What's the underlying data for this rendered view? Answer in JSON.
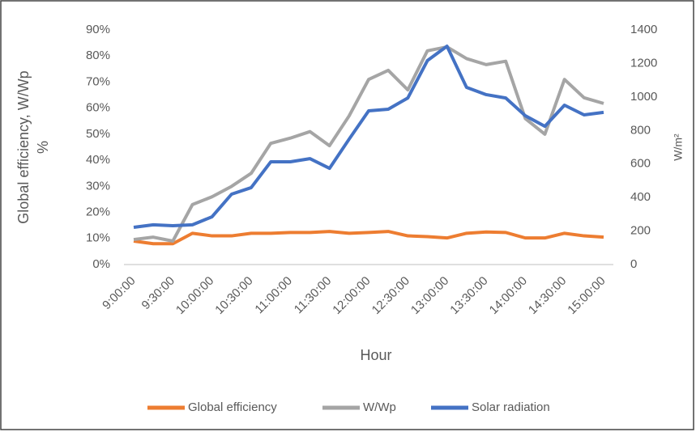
{
  "chart_data": {
    "type": "line",
    "y_label": "Global efficiency, W/Wp %",
    "y2_label": "W/m²",
    "x_label": "Hour",
    "categories": [
      "9:00:00",
      null,
      "9:30:00",
      null,
      "10:00:00",
      null,
      "10:30:00",
      null,
      "11:00:00",
      null,
      "11:30:00",
      null,
      "12:00:00",
      null,
      "12:30:00",
      null,
      "13:00:00",
      null,
      "13:30:00",
      null,
      "14:00:00",
      null,
      "14:30:00",
      null,
      "15:00:00"
    ],
    "series": [
      {
        "name": "Global efficiency",
        "color": "#ed7d31",
        "values": [
          9,
          8,
          8,
          12,
          11,
          11,
          12,
          12,
          12.3,
          12.3,
          12.7,
          12,
          12.3,
          12.7,
          11,
          10.7,
          10.2,
          12,
          12.5,
          12.3,
          10.2,
          10.2,
          12,
          11,
          10.5
        ]
      },
      {
        "name": "W/Wp",
        "color": "#a5a5a5",
        "values": [
          9.6,
          10.5,
          9,
          23,
          26,
          30,
          35,
          46.5,
          48.5,
          51,
          45.6,
          57,
          71,
          74.5,
          67,
          82,
          83.5,
          79,
          76.7,
          78,
          56,
          50,
          71,
          64,
          61.8
        ]
      },
      {
        "name": "Solar radiation",
        "color": "#4472c4",
        "axis": "y2",
        "values": [
          222,
          237,
          232,
          237,
          285,
          420,
          459,
          613,
          613,
          632,
          574,
          748,
          917,
          927,
          994,
          1217,
          1303,
          1057,
          1014,
          994,
          888,
          825,
          951,
          893,
          908
        ]
      }
    ],
    "ylim": [
      0,
      90
    ],
    "yticks": [
      {
        "value": 0,
        "label": "0%"
      },
      {
        "value": 10,
        "label": "10%"
      },
      {
        "value": 20,
        "label": "20%"
      },
      {
        "value": 30,
        "label": "30%"
      },
      {
        "value": 40,
        "label": "40%"
      },
      {
        "value": 50,
        "label": "50%"
      },
      {
        "value": 60,
        "label": "60%"
      },
      {
        "value": 70,
        "label": "70%"
      },
      {
        "value": 80,
        "label": "80%"
      },
      {
        "value": 90,
        "label": "90%"
      }
    ],
    "y2lim": [
      0,
      1400
    ],
    "y2ticks": [
      0,
      200,
      400,
      600,
      800,
      1000,
      1200,
      1400
    ],
    "grid": false,
    "legend": "bottom"
  }
}
